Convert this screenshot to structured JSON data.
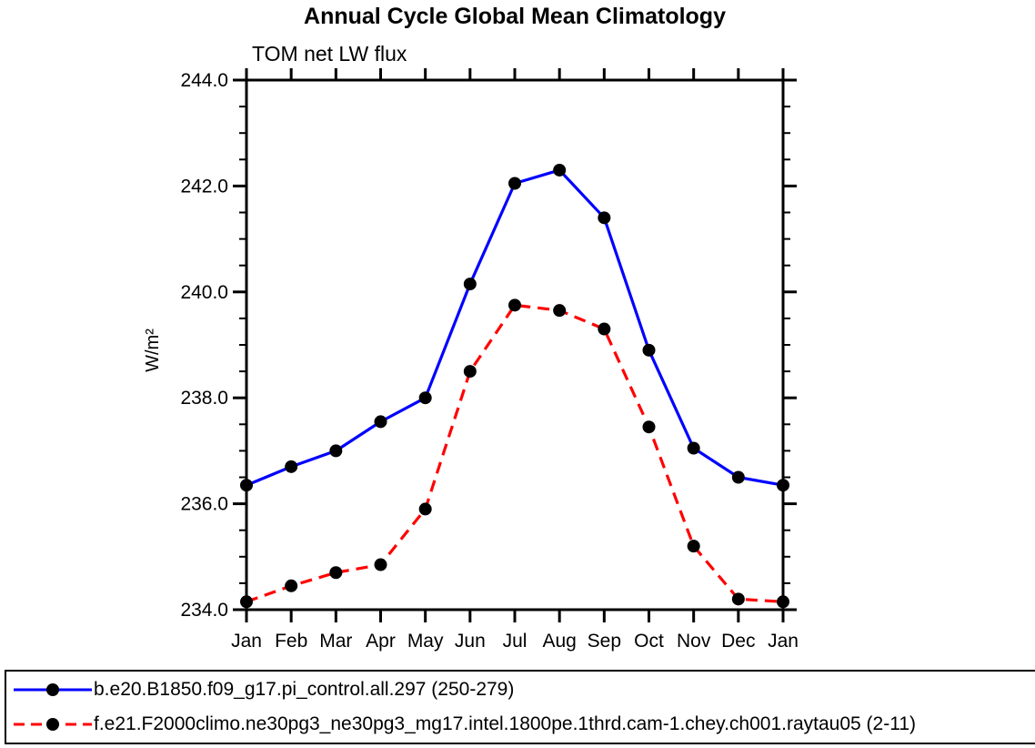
{
  "chart_data": {
    "type": "line",
    "title": "Annual Cycle Global Mean Climatology",
    "subtitle": "TOM net LW flux",
    "ylabel": "W/m²",
    "xlabel": "",
    "categories": [
      "Jan",
      "Feb",
      "Mar",
      "Apr",
      "May",
      "Jun",
      "Jul",
      "Aug",
      "Sep",
      "Oct",
      "Nov",
      "Dec",
      "Jan"
    ],
    "ylim": [
      234.0,
      244.0
    ],
    "yticks": [
      234.0,
      236.0,
      238.0,
      240.0,
      242.0,
      244.0
    ],
    "ytick_labels": [
      "234.0",
      "236.0",
      "238.0",
      "240.0",
      "242.0",
      "244.0"
    ],
    "minor_tick_step": 0.5,
    "grid": false,
    "legend_position": "bottom",
    "frame_color": "#000000",
    "marker": {
      "shape": "circle",
      "color": "#000000"
    },
    "series": [
      {
        "name": "b.e20.B1850.f09_g17.pi_control.all.297 (250-279)",
        "color": "#0000ff",
        "line_style": "solid",
        "values": [
          236.35,
          236.7,
          237.0,
          237.55,
          238.0,
          240.15,
          242.05,
          242.3,
          241.4,
          238.9,
          237.05,
          236.5,
          236.35
        ]
      },
      {
        "name": "f.e21.F2000climo.ne30pg3_ne30pg3_mg17.intel.1800pe.1thrd.cam-1.chey.ch001.raytau05 (2-11)",
        "color": "#ff0000",
        "line_style": "dashed",
        "values": [
          234.15,
          234.45,
          234.7,
          234.85,
          235.9,
          238.5,
          239.75,
          239.65,
          239.3,
          237.45,
          235.2,
          234.2,
          234.15
        ]
      }
    ]
  }
}
